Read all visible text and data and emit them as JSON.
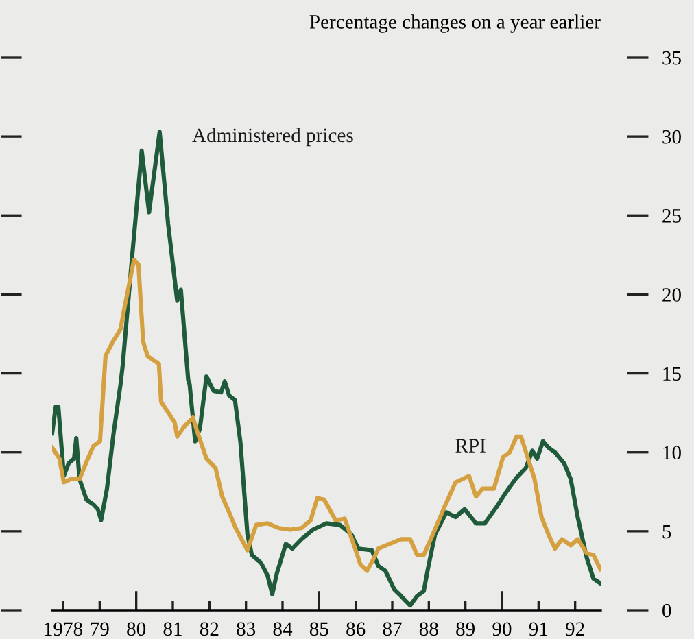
{
  "chart_data": {
    "type": "line",
    "ylabel": "Percentage changes on a year earlier",
    "xlim": [
      1977.7,
      1992.7
    ],
    "ylim": [
      0,
      35
    ],
    "yticks": [
      0,
      5,
      10,
      15,
      20,
      25,
      30,
      35
    ],
    "xticks": [
      1978,
      {
        "value": 1979,
        "label": "79"
      },
      {
        "value": 1980,
        "label": "80"
      },
      {
        "value": 1981,
        "label": "81"
      },
      {
        "value": 1982,
        "label": "82"
      },
      {
        "value": 1983,
        "label": "83"
      },
      {
        "value": 1984,
        "label": "84"
      },
      {
        "value": 1985,
        "label": "85"
      },
      {
        "value": 1986,
        "label": "86"
      },
      {
        "value": 1987,
        "label": "87"
      },
      {
        "value": 1988,
        "label": "88"
      },
      {
        "value": 1989,
        "label": "89"
      },
      {
        "value": 1990,
        "label": "90"
      },
      {
        "value": 1991,
        "label": "91"
      },
      {
        "value": 1992,
        "label": "92"
      }
    ],
    "grid": false,
    "legend": false,
    "marker": "none",
    "line_style": "solid",
    "series": [
      {
        "name": "Administered prices",
        "color": "#1f5a3a",
        "x": [
          1977.7,
          1977.8,
          1977.87,
          1978.02,
          1978.15,
          1978.3,
          1978.36,
          1978.45,
          1978.64,
          1978.83,
          1978.95,
          1979.04,
          1979.2,
          1979.38,
          1979.57,
          1979.63,
          1979.88,
          1980.15,
          1980.35,
          1980.64,
          1980.87,
          1981.12,
          1981.22,
          1981.42,
          1981.46,
          1981.61,
          1981.74,
          1981.92,
          1982.11,
          1982.32,
          1982.42,
          1982.54,
          1982.7,
          1982.85,
          1983.04,
          1983.16,
          1983.41,
          1983.59,
          1983.72,
          1983.84,
          1984.09,
          1984.27,
          1984.52,
          1984.83,
          1985.2,
          1985.57,
          1985.88,
          1986.07,
          1986.44,
          1986.62,
          1986.81,
          1987.06,
          1987.24,
          1987.49,
          1987.68,
          1987.86,
          1987.99,
          1988.17,
          1988.48,
          1988.73,
          1988.98,
          1989.29,
          1989.53,
          1989.84,
          1990.09,
          1990.4,
          1990.65,
          1990.83,
          1990.96,
          1991.12,
          1991.27,
          1991.45,
          1991.7,
          1991.88,
          1992.07,
          1992.32,
          1992.5,
          1992.69
        ],
        "values": [
          11.2,
          12.9,
          12.9,
          8.5,
          9.3,
          9.6,
          10.9,
          8.3,
          7.0,
          6.7,
          6.4,
          5.7,
          7.7,
          11.2,
          14.3,
          15.5,
          22.2,
          29.1,
          25.2,
          30.3,
          24.5,
          19.6,
          20.3,
          14.6,
          14.3,
          10.7,
          11.5,
          14.8,
          13.9,
          13.8,
          14.5,
          13.6,
          13.3,
          10.6,
          4.8,
          3.5,
          3.0,
          2.2,
          1.0,
          2.3,
          4.2,
          3.9,
          4.5,
          5.1,
          5.5,
          5.4,
          4.8,
          3.9,
          3.8,
          2.8,
          2.5,
          1.3,
          0.9,
          0.3,
          0.9,
          1.2,
          2.8,
          4.8,
          6.2,
          5.9,
          6.4,
          5.5,
          5.5,
          6.5,
          7.4,
          8.4,
          9.0,
          10.1,
          9.6,
          10.7,
          10.3,
          10.0,
          9.3,
          8.3,
          5.9,
          3.3,
          2.0,
          1.7
        ]
      },
      {
        "name": "RPI",
        "color": "#d4a040",
        "x": [
          1977.7,
          1977.9,
          1978.02,
          1978.21,
          1978.45,
          1978.64,
          1978.83,
          1979.01,
          1979.16,
          1979.36,
          1979.57,
          1979.69,
          1979.94,
          1980.06,
          1980.19,
          1980.31,
          1980.62,
          1980.68,
          1981.05,
          1981.12,
          1981.3,
          1981.55,
          1981.67,
          1981.92,
          1982.17,
          1982.35,
          1982.54,
          1982.72,
          1983.04,
          1983.28,
          1983.59,
          1983.9,
          1984.21,
          1984.52,
          1984.77,
          1984.95,
          1985.14,
          1985.45,
          1985.7,
          1985.94,
          1986.13,
          1986.31,
          1986.5,
          1986.62,
          1986.93,
          1987.24,
          1987.49,
          1987.68,
          1987.86,
          1988.11,
          1988.42,
          1988.73,
          1989.1,
          1989.29,
          1989.47,
          1989.78,
          1990.03,
          1990.21,
          1990.4,
          1990.52,
          1990.7,
          1990.89,
          1991.08,
          1991.27,
          1991.45,
          1991.64,
          1991.88,
          1992.07,
          1992.32,
          1992.5,
          1992.69
        ],
        "values": [
          10.3,
          9.6,
          8.1,
          8.3,
          8.3,
          9.4,
          10.4,
          10.7,
          16.1,
          17.0,
          17.8,
          19.3,
          22.2,
          21.9,
          17.0,
          16.1,
          15.6,
          13.2,
          11.9,
          11.0,
          11.6,
          12.2,
          11.3,
          9.6,
          9.0,
          7.2,
          6.2,
          5.2,
          3.8,
          5.4,
          5.5,
          5.2,
          5.1,
          5.2,
          5.7,
          7.1,
          7.0,
          5.7,
          5.8,
          4.2,
          2.9,
          2.5,
          3.3,
          3.9,
          4.2,
          4.5,
          4.5,
          3.5,
          3.5,
          4.8,
          6.5,
          8.1,
          8.5,
          7.2,
          7.7,
          7.7,
          9.7,
          10.0,
          11.0,
          11.0,
          9.7,
          8.3,
          5.9,
          4.8,
          3.9,
          4.5,
          4.1,
          4.5,
          3.6,
          3.5,
          2.6
        ]
      }
    ]
  }
}
